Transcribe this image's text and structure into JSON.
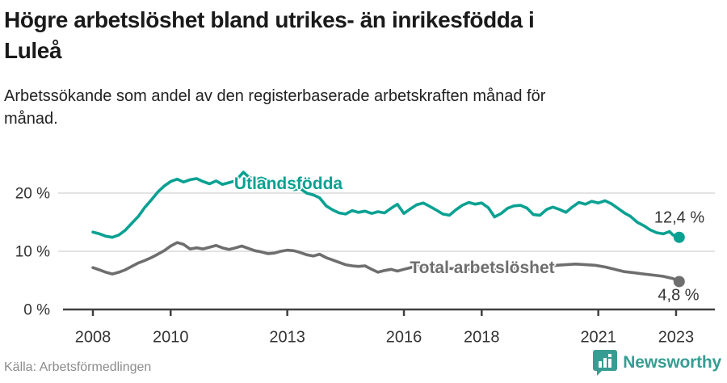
{
  "header": {
    "title_lines": [
      "Högre arbetslöshet bland utrikes- än inrikesfödda i",
      "Luleå"
    ],
    "subtitle_lines": [
      "Arbetssökande som andel av den registerbaserade arbetskraften månad för",
      "månad."
    ]
  },
  "footer": {
    "source": "Källa: Arbetsförmedlingen",
    "brand": "Newsworthy"
  },
  "colors": {
    "foreign_born": "#0aa192",
    "total": "#6e6e6e",
    "grid": "#d9d9d9",
    "axis": "#404040",
    "text": "#333333",
    "brand_teal": "#379d93"
  },
  "chart_data": {
    "type": "line",
    "title": "Högre arbetslöshet bland utrikes- än inrikesfödda i Luleå",
    "subtitle": "Arbetssökande som andel av den registerbaserade arbetskraften månad för månad.",
    "unit": "%",
    "grid": true,
    "x_ticks": [
      2008,
      2010,
      2013,
      2016,
      2018,
      2021,
      2023
    ],
    "y_ticks": [
      {
        "value": 0,
        "label": "0 %"
      },
      {
        "value": 10,
        "label": "10 %"
      },
      {
        "value": 20,
        "label": "20 %"
      }
    ],
    "x_range": [
      2007.2,
      2024.0
    ],
    "y_range": [
      0,
      25.4
    ],
    "series": [
      {
        "name": "Utlandsfödda",
        "color_key": "foreign_born",
        "end_label": "12,4 %",
        "label_pos": {
          "x": 357,
          "y": 228
        },
        "end_label_pos": {
          "x": 841,
          "y": 270
        },
        "points": [
          [
            2008.0,
            13.3
          ],
          [
            2008.17,
            13.0
          ],
          [
            2008.33,
            12.6
          ],
          [
            2008.5,
            12.4
          ],
          [
            2008.67,
            12.8
          ],
          [
            2008.83,
            13.6
          ],
          [
            2009.0,
            14.8
          ],
          [
            2009.17,
            16.0
          ],
          [
            2009.33,
            17.5
          ],
          [
            2009.5,
            18.8
          ],
          [
            2009.67,
            20.2
          ],
          [
            2009.83,
            21.2
          ],
          [
            2010.0,
            22.0
          ],
          [
            2010.17,
            22.4
          ],
          [
            2010.33,
            21.9
          ],
          [
            2010.5,
            22.3
          ],
          [
            2010.67,
            22.5
          ],
          [
            2010.83,
            22.0
          ],
          [
            2011.0,
            21.6
          ],
          [
            2011.17,
            22.1
          ],
          [
            2011.33,
            21.5
          ],
          [
            2011.5,
            21.8
          ],
          [
            2011.67,
            22.1
          ],
          [
            2011.87,
            23.6
          ],
          [
            2012.0,
            22.8
          ],
          [
            2012.17,
            22.3
          ],
          [
            2012.33,
            22.6
          ],
          [
            2012.5,
            22.2
          ],
          [
            2012.67,
            21.9
          ],
          [
            2012.83,
            21.3
          ],
          [
            2013.0,
            21.1
          ],
          [
            2013.17,
            20.6
          ],
          [
            2013.33,
            20.8
          ],
          [
            2013.5,
            20.0
          ],
          [
            2013.67,
            19.7
          ],
          [
            2013.83,
            19.2
          ],
          [
            2014.0,
            17.8
          ],
          [
            2014.17,
            17.1
          ],
          [
            2014.33,
            16.6
          ],
          [
            2014.5,
            16.4
          ],
          [
            2014.67,
            17.0
          ],
          [
            2014.83,
            16.7
          ],
          [
            2015.0,
            16.9
          ],
          [
            2015.17,
            16.5
          ],
          [
            2015.33,
            16.8
          ],
          [
            2015.5,
            16.6
          ],
          [
            2015.67,
            17.4
          ],
          [
            2015.83,
            18.1
          ],
          [
            2016.0,
            16.5
          ],
          [
            2016.17,
            17.3
          ],
          [
            2016.33,
            18.0
          ],
          [
            2016.5,
            18.3
          ],
          [
            2016.67,
            17.7
          ],
          [
            2016.83,
            17.1
          ],
          [
            2017.0,
            16.4
          ],
          [
            2017.17,
            16.2
          ],
          [
            2017.33,
            17.1
          ],
          [
            2017.5,
            17.9
          ],
          [
            2017.67,
            18.4
          ],
          [
            2017.83,
            18.1
          ],
          [
            2018.0,
            18.3
          ],
          [
            2018.17,
            17.5
          ],
          [
            2018.33,
            15.9
          ],
          [
            2018.5,
            16.5
          ],
          [
            2018.67,
            17.4
          ],
          [
            2018.83,
            17.8
          ],
          [
            2019.0,
            17.9
          ],
          [
            2019.17,
            17.4
          ],
          [
            2019.33,
            16.3
          ],
          [
            2019.5,
            16.2
          ],
          [
            2019.67,
            17.2
          ],
          [
            2019.83,
            17.6
          ],
          [
            2020.0,
            17.2
          ],
          [
            2020.17,
            16.7
          ],
          [
            2020.33,
            17.6
          ],
          [
            2020.5,
            18.4
          ],
          [
            2020.67,
            18.1
          ],
          [
            2020.83,
            18.6
          ],
          [
            2021.0,
            18.3
          ],
          [
            2021.17,
            18.7
          ],
          [
            2021.33,
            18.2
          ],
          [
            2021.5,
            17.4
          ],
          [
            2021.67,
            16.6
          ],
          [
            2021.83,
            16.0
          ],
          [
            2022.0,
            15.0
          ],
          [
            2022.17,
            14.4
          ],
          [
            2022.33,
            13.7
          ],
          [
            2022.5,
            13.2
          ],
          [
            2022.67,
            13.0
          ],
          [
            2022.83,
            13.4
          ],
          [
            2022.92,
            12.8
          ],
          [
            2023.08,
            12.4
          ]
        ]
      },
      {
        "name": "Total arbetslöshet",
        "color_key": "total",
        "end_label": "4,8 %",
        "label_pos": {
          "x": 597,
          "y": 332
        },
        "end_label_pos": {
          "x": 840,
          "y": 366
        },
        "points": [
          [
            2008.0,
            7.2
          ],
          [
            2008.17,
            6.8
          ],
          [
            2008.33,
            6.4
          ],
          [
            2008.5,
            6.1
          ],
          [
            2008.67,
            6.4
          ],
          [
            2008.83,
            6.8
          ],
          [
            2009.0,
            7.4
          ],
          [
            2009.17,
            8.0
          ],
          [
            2009.33,
            8.4
          ],
          [
            2009.5,
            8.9
          ],
          [
            2009.67,
            9.5
          ],
          [
            2009.83,
            10.1
          ],
          [
            2010.0,
            10.9
          ],
          [
            2010.17,
            11.5
          ],
          [
            2010.33,
            11.2
          ],
          [
            2010.5,
            10.4
          ],
          [
            2010.67,
            10.6
          ],
          [
            2010.83,
            10.4
          ],
          [
            2011.0,
            10.7
          ],
          [
            2011.17,
            11.0
          ],
          [
            2011.33,
            10.6
          ],
          [
            2011.5,
            10.3
          ],
          [
            2011.67,
            10.6
          ],
          [
            2011.83,
            10.9
          ],
          [
            2012.0,
            10.5
          ],
          [
            2012.17,
            10.1
          ],
          [
            2012.33,
            9.9
          ],
          [
            2012.5,
            9.6
          ],
          [
            2012.67,
            9.7
          ],
          [
            2012.83,
            10.0
          ],
          [
            2013.0,
            10.2
          ],
          [
            2013.17,
            10.1
          ],
          [
            2013.33,
            9.8
          ],
          [
            2013.5,
            9.4
          ],
          [
            2013.67,
            9.2
          ],
          [
            2013.83,
            9.5
          ],
          [
            2014.0,
            8.9
          ],
          [
            2014.17,
            8.5
          ],
          [
            2014.33,
            8.1
          ],
          [
            2014.5,
            7.7
          ],
          [
            2014.67,
            7.5
          ],
          [
            2014.83,
            7.4
          ],
          [
            2015.0,
            7.5
          ],
          [
            2015.17,
            6.9
          ],
          [
            2015.33,
            6.4
          ],
          [
            2015.5,
            6.7
          ],
          [
            2015.67,
            6.9
          ],
          [
            2015.83,
            6.6
          ],
          [
            2016.0,
            6.9
          ],
          [
            2016.17,
            7.2
          ],
          [
            2016.33,
            7.4
          ],
          [
            2016.5,
            7.3
          ],
          [
            2016.75,
            7.2
          ],
          [
            2017.0,
            7.1
          ],
          [
            2017.33,
            7.0
          ],
          [
            2017.67,
            6.9
          ],
          [
            2018.0,
            7.0
          ],
          [
            2018.33,
            6.9
          ],
          [
            2018.67,
            7.0
          ],
          [
            2019.0,
            7.1
          ],
          [
            2019.33,
            7.0
          ],
          [
            2019.67,
            7.2
          ],
          [
            2019.92,
            7.6
          ],
          [
            2020.17,
            7.7
          ],
          [
            2020.42,
            7.8
          ],
          [
            2020.67,
            7.7
          ],
          [
            2020.92,
            7.6
          ],
          [
            2021.17,
            7.3
          ],
          [
            2021.42,
            6.9
          ],
          [
            2021.67,
            6.5
          ],
          [
            2021.92,
            6.3
          ],
          [
            2022.17,
            6.1
          ],
          [
            2022.42,
            5.9
          ],
          [
            2022.67,
            5.7
          ],
          [
            2022.92,
            5.3
          ],
          [
            2023.08,
            4.8
          ]
        ]
      }
    ]
  }
}
